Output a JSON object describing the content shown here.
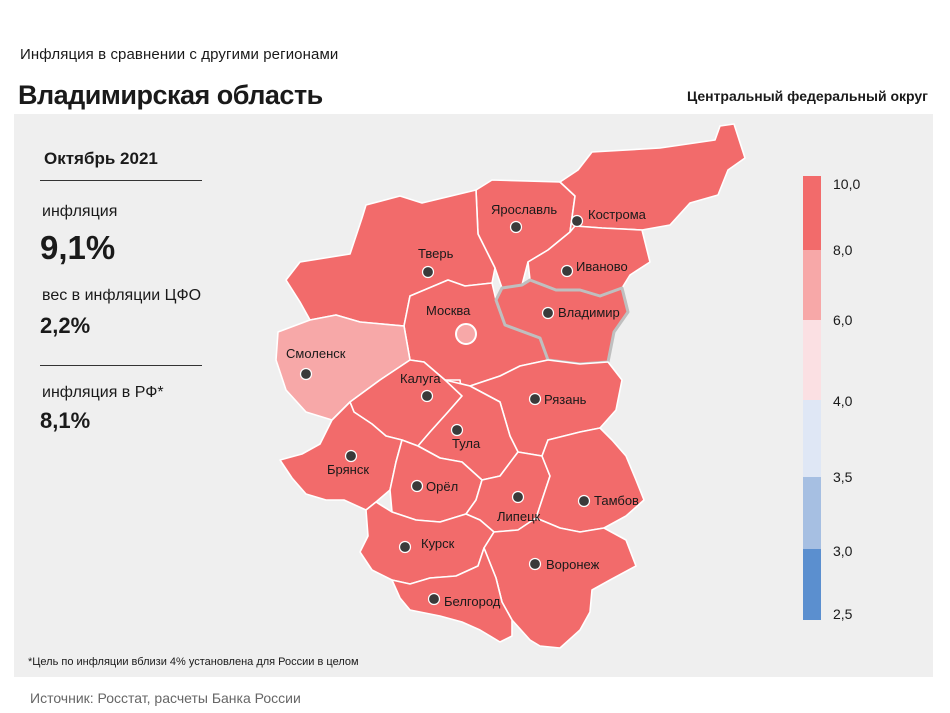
{
  "header": {
    "subtitle": "Инфляция  в сравнении  с другими  регионами",
    "title": "Владимирская область",
    "district": "Центральный федеральный округ"
  },
  "stats": {
    "period": "Октябрь 2021",
    "inflation_label": "инфляция",
    "inflation_value": "9,1%",
    "weight_label": "вес в инфляции  ЦФО",
    "weight_value": "2,2%",
    "rf_label": "инфляция  в РФ*",
    "rf_value": "8,1%"
  },
  "map": {
    "regions": [
      {
        "name": "Ярославль",
        "color": "#f26b6b"
      },
      {
        "name": "Кострома",
        "color": "#f26b6b"
      },
      {
        "name": "Тверь",
        "color": "#f26b6b"
      },
      {
        "name": "Иваново",
        "color": "#f26b6b"
      },
      {
        "name": "Москва",
        "color": "#f26b6b"
      },
      {
        "name": "Владимир",
        "color": "#f26b6b",
        "highlighted": true
      },
      {
        "name": "Смоленск",
        "color": "#f7a8a8"
      },
      {
        "name": "Калуга",
        "color": "#f26b6b"
      },
      {
        "name": "Рязань",
        "color": "#f26b6b"
      },
      {
        "name": "Тула",
        "color": "#f26b6b"
      },
      {
        "name": "Брянск",
        "color": "#f26b6b"
      },
      {
        "name": "Орёл",
        "color": "#f26b6b"
      },
      {
        "name": "Липецк",
        "color": "#f26b6b"
      },
      {
        "name": "Тамбов",
        "color": "#f26b6b"
      },
      {
        "name": "Курск",
        "color": "#f26b6b"
      },
      {
        "name": "Воронеж",
        "color": "#f26b6b"
      },
      {
        "name": "Белгород",
        "color": "#f26b6b"
      }
    ]
  },
  "legend": {
    "ticks": [
      "10,0",
      "8,0",
      "6,0",
      "4,0",
      "3,5",
      "3,0",
      "2,5"
    ],
    "colors": [
      "#f26b6b",
      "#f7a8a8",
      "#fbe0e3",
      "#dfe7f5",
      "#a6bfe2",
      "#5b8fcf"
    ]
  },
  "footnote": "*Цель по инфляции вблизи 4% установлена для России в целом",
  "source": "Источник: Росстат, расчеты Банка России"
}
